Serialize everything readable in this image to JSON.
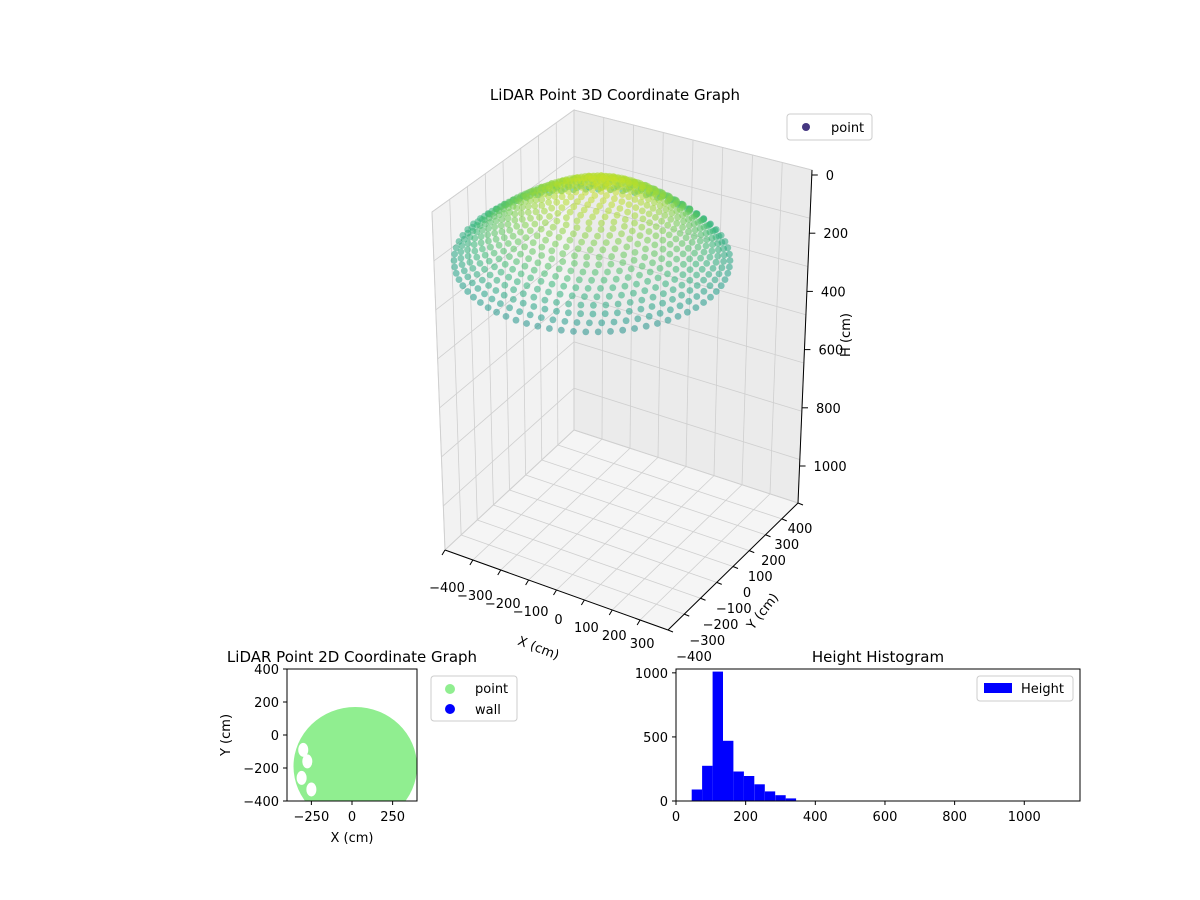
{
  "chart_data": [
    {
      "type": "scatter",
      "title": "LiDAR Point 3D Coordinate Graph",
      "xlabel": "X (cm)",
      "ylabel": "Y (cm)",
      "zlabel": "H (cm)",
      "xlim": [
        -400,
        400
      ],
      "ylim": [
        -400,
        400
      ],
      "zlim": [
        0,
        1150
      ],
      "z_inverted": true,
      "x_ticks": [
        "−400",
        "−300",
        "−200",
        "−100",
        "0",
        "100",
        "200",
        "300"
      ],
      "y_ticks": [
        "400",
        "300",
        "200",
        "100",
        "0",
        "−100",
        "−200",
        "−300",
        "−400"
      ],
      "z_ticks": [
        "0",
        "200",
        "400",
        "600",
        "800",
        "1000"
      ],
      "legend": [
        {
          "name": "point",
          "color": "#453781"
        }
      ],
      "legend_position": "top-right",
      "colormap": "viridis",
      "grid": true,
      "point_cloud": {
        "shape": "dome",
        "radius_cm": 400,
        "apex_height_cm": 60,
        "rim_height_cm": 450,
        "rings": 22,
        "points_per_ring": 70
      }
    },
    {
      "type": "scatter",
      "title": "LiDAR Point 2D Coordinate Graph",
      "xlabel": "X (cm)",
      "ylabel": "Y (cm)",
      "xlim": [
        -400,
        400
      ],
      "ylim": [
        -400,
        400
      ],
      "x_ticks": [
        -250,
        0,
        250
      ],
      "y_ticks": [
        400,
        200,
        0,
        -200,
        -400
      ],
      "legend": [
        {
          "name": "point",
          "color": "#90ee90"
        },
        {
          "name": "wall",
          "color": "#0000ff"
        }
      ],
      "legend_position": "outside-right",
      "region": {
        "center": [
          20,
          -190
        ],
        "rx": 380,
        "ry": 360,
        "holes": [
          [
            -275,
            -160
          ],
          [
            -310,
            -260
          ],
          [
            -250,
            -330
          ],
          [
            -300,
            -90
          ]
        ]
      }
    },
    {
      "type": "bar",
      "title": "Height Histogram",
      "xlim": [
        0,
        1160
      ],
      "ylim": [
        0,
        1030
      ],
      "x_ticks": [
        0,
        200,
        400,
        600,
        800,
        1000
      ],
      "y_ticks": [
        0,
        500,
        1000
      ],
      "bin_width": 30,
      "bin_edges": [
        60,
        90,
        120,
        150,
        180,
        210,
        240,
        270,
        300,
        330
      ],
      "values": [
        90,
        275,
        1010,
        470,
        230,
        195,
        130,
        75,
        45,
        20
      ],
      "series": [
        {
          "name": "Height",
          "color": "#0000ff"
        }
      ],
      "legend_position": "top-right"
    }
  ]
}
